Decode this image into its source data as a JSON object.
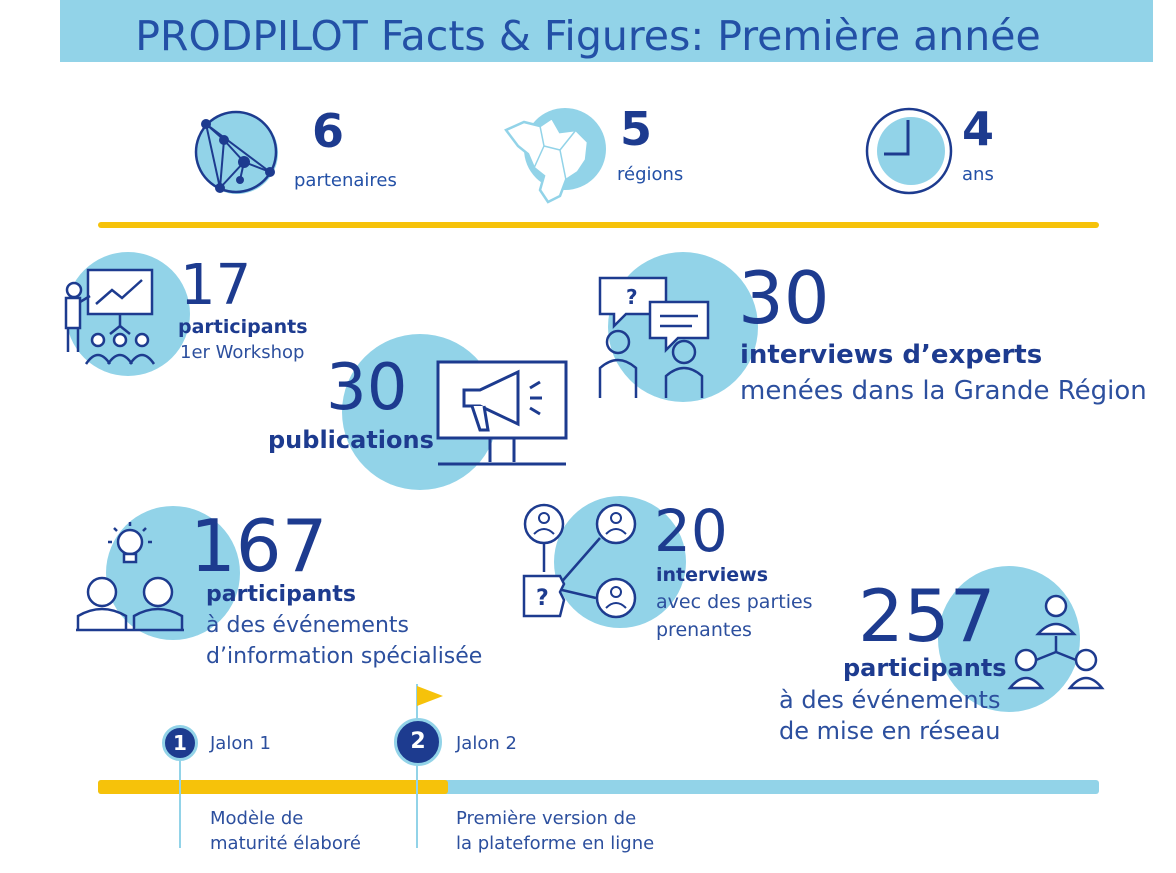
{
  "title": "PRODPILOT Facts & Figures: Première année",
  "top_stats": [
    {
      "value": "6",
      "label": "partenaires",
      "icon": "network-globe-icon"
    },
    {
      "value": "5",
      "label": "régions",
      "icon": "region-map-icon"
    },
    {
      "value": "4",
      "label": "ans",
      "icon": "clock-icon"
    }
  ],
  "workshop": {
    "value": "17",
    "bold": "participants",
    "sub": "1er Workshop"
  },
  "experts": {
    "value": "30",
    "bold": "interviews d’experts",
    "sub": "menées dans la Grande Région"
  },
  "publications": {
    "value": "30",
    "bold": "publications"
  },
  "info_events": {
    "value": "167",
    "bold": "participants",
    "sub1": "à des événements",
    "sub2": "d’information spécialisée"
  },
  "stakeholders": {
    "value": "20",
    "bold": "interviews",
    "sub1": "avec des parties",
    "sub2": "prenantes"
  },
  "networking": {
    "value": "257",
    "bold": "participants",
    "sub1": "à des événements",
    "sub2": "de mise en réseau"
  },
  "milestones": [
    {
      "num": "1",
      "label": "Jalon 1",
      "desc1": "Modèle de",
      "desc2": "maturité élaboré"
    },
    {
      "num": "2",
      "label": "Jalon 2",
      "desc1": "Première version de",
      "desc2": "la plateforme en ligne"
    }
  ],
  "timeline_progress": 0.35,
  "colors": {
    "navy": "#1d3b8f",
    "light_blue": "#92d3e8",
    "yellow": "#f6c20a"
  }
}
